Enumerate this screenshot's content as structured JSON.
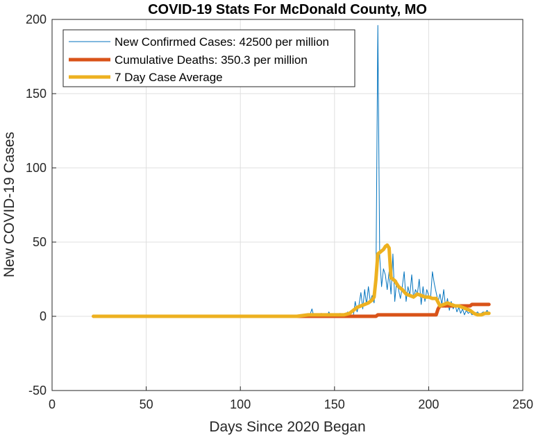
{
  "chart_data": {
    "type": "line",
    "title": "COVID-19 Stats For McDonald County, MO",
    "xlabel": "Days Since 2020 Began",
    "ylabel": "New COVID-19 Cases",
    "xlim": [
      0,
      250
    ],
    "ylim": [
      -50,
      200
    ],
    "xticks": [
      0,
      50,
      100,
      150,
      200,
      250
    ],
    "yticks": [
      -50,
      0,
      50,
      100,
      150,
      200
    ],
    "grid": true,
    "legend_position": "top-left",
    "series": [
      {
        "name": "New Confirmed Cases: 42500 per million",
        "color": "#0072BD",
        "line_width": "thin",
        "x": [
          22,
          60,
          100,
          130,
          136,
          137,
          138,
          139,
          140,
          141,
          142,
          143,
          144,
          145,
          146,
          147,
          148,
          149,
          150,
          151,
          152,
          153,
          154,
          155,
          156,
          157,
          158,
          159,
          160,
          161,
          162,
          163,
          164,
          165,
          166,
          167,
          168,
          169,
          170,
          171,
          172,
          173,
          174,
          175,
          176,
          177,
          178,
          179,
          180,
          181,
          182,
          183,
          184,
          185,
          186,
          187,
          188,
          189,
          190,
          191,
          192,
          193,
          194,
          195,
          196,
          197,
          198,
          199,
          200,
          201,
          202,
          203,
          204,
          205,
          206,
          207,
          208,
          209,
          210,
          211,
          212,
          213,
          214,
          215,
          216,
          217,
          218,
          219,
          220,
          221,
          222,
          223,
          224,
          225,
          226,
          227,
          228,
          229,
          230,
          231,
          232
        ],
        "y": [
          0,
          0,
          0,
          0,
          0,
          1,
          5,
          0,
          0,
          1,
          0,
          2,
          0,
          1,
          0,
          3,
          0,
          0,
          1,
          0,
          0,
          2,
          0,
          1,
          0,
          3,
          0,
          1,
          0,
          10,
          3,
          8,
          16,
          5,
          18,
          8,
          20,
          10,
          14,
          9,
          25,
          196,
          40,
          20,
          32,
          28,
          18,
          30,
          15,
          42,
          10,
          24,
          18,
          12,
          20,
          30,
          10,
          20,
          14,
          28,
          12,
          18,
          15,
          25,
          8,
          20,
          10,
          18,
          14,
          12,
          30,
          22,
          16,
          10,
          15,
          8,
          18,
          6,
          12,
          4,
          10,
          5,
          8,
          3,
          6,
          2,
          5,
          1,
          4,
          2,
          3,
          1,
          2,
          2,
          3,
          1,
          2,
          3,
          2,
          4,
          2
        ]
      },
      {
        "name": "Cumulative Deaths: 350.3 per million",
        "color": "#D95319",
        "line_width": "thick",
        "x": [
          22,
          100,
          140,
          160,
          172,
          173,
          185,
          200,
          204,
          205,
          206,
          215,
          222,
          223,
          232
        ],
        "y": [
          0,
          0,
          0,
          0,
          0,
          1,
          1,
          1,
          1,
          5,
          7,
          7,
          7,
          8,
          8
        ]
      },
      {
        "name": "7 Day Case Average",
        "color": "#EDB120",
        "line_width": "thick",
        "x": [
          22,
          100,
          130,
          136,
          140,
          145,
          150,
          155,
          158,
          160,
          162,
          164,
          166,
          168,
          170,
          171,
          172,
          173,
          174,
          175,
          176,
          177,
          178,
          179,
          180,
          182,
          184,
          186,
          188,
          190,
          192,
          194,
          196,
          198,
          200,
          202,
          204,
          206,
          208,
          210,
          212,
          214,
          216,
          218,
          220,
          222,
          224,
          226,
          228,
          230,
          232
        ],
        "y": [
          0,
          0,
          0,
          1,
          1,
          1,
          1,
          1,
          2,
          4,
          6,
          7,
          8,
          9,
          11,
          13,
          25,
          42,
          43,
          44,
          45,
          47,
          48,
          46,
          26,
          24,
          20,
          18,
          15,
          14,
          13,
          15,
          14,
          13,
          13,
          12,
          12,
          7,
          8,
          9,
          8,
          7,
          7,
          6,
          5,
          4,
          2,
          1,
          1,
          2,
          2
        ]
      }
    ]
  }
}
